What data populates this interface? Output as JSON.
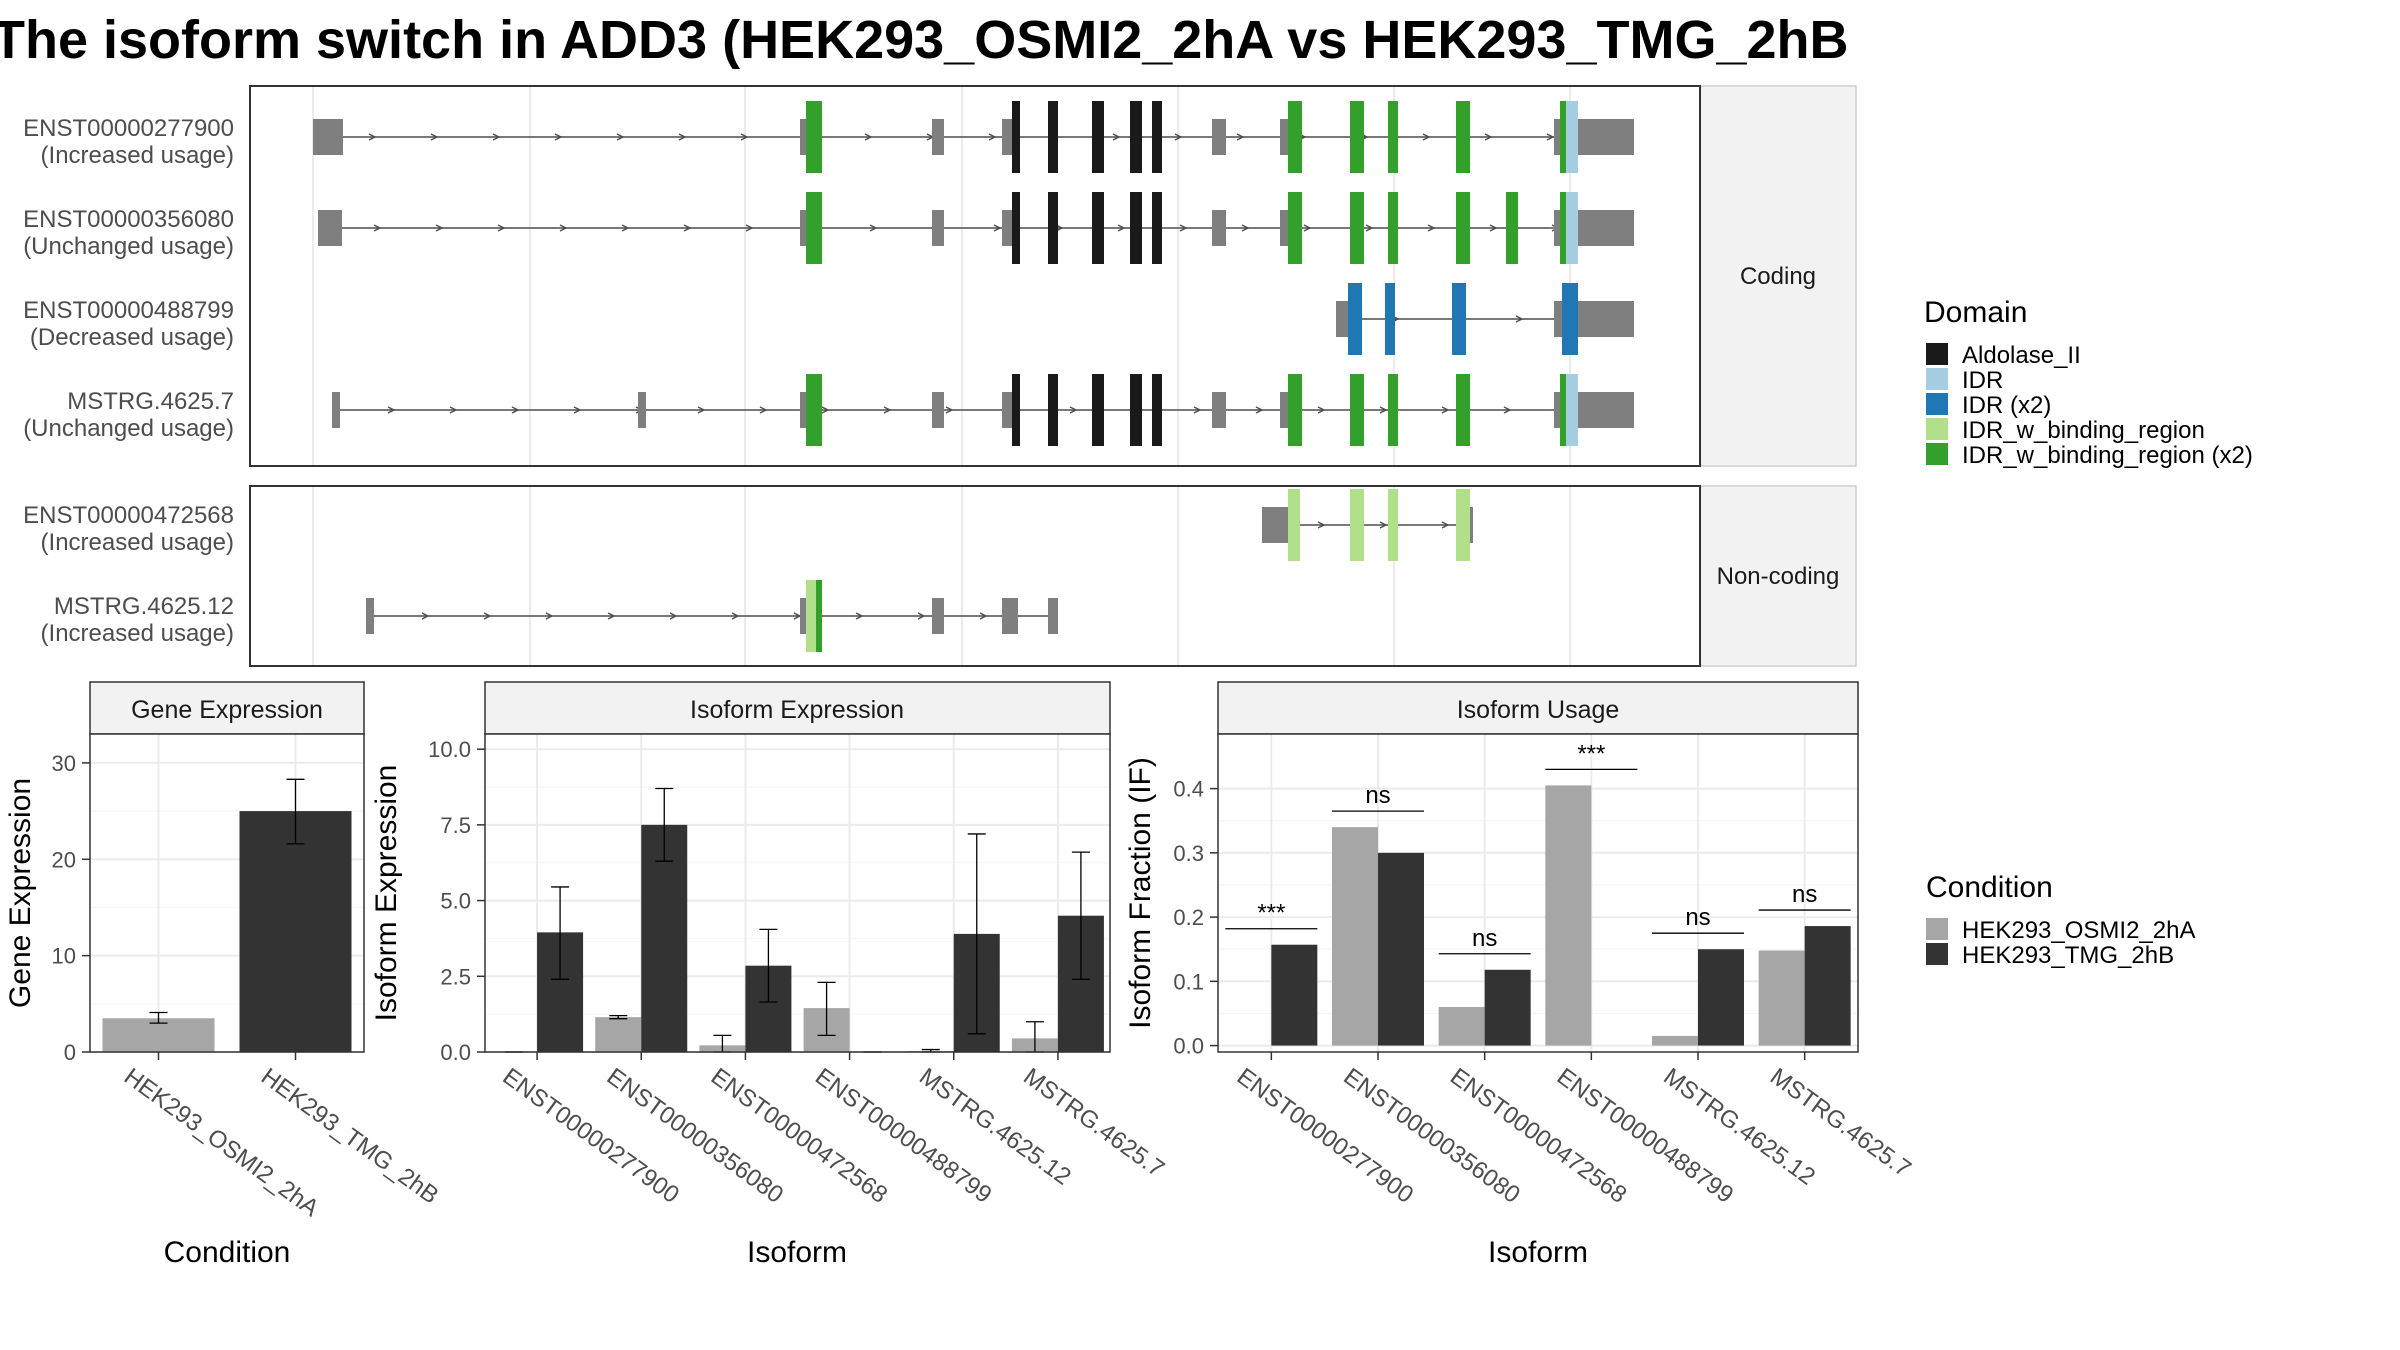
{
  "title": "The isoform switch in ADD3 (HEK293_OSMI2_2hA vs HEK293_TMG_2hB",
  "colors": {
    "intron": "#4d4d4d",
    "utr_exon": "#7f7f7f",
    "strip_bg": "#f2f2f2",
    "frame": "#333333",
    "grid": "#ebebeb",
    "cond_a": "#a6a6a6",
    "cond_b": "#333333",
    "Aldolase_II": "#1a1a1a",
    "IDR": "#a6cee3",
    "IDR (x2)": "#1f78b4",
    "IDR_w_binding_region": "#b2df8a",
    "IDR_w_binding_region (x2)": "#33a02c"
  },
  "panels": {
    "coding_label": "Coding",
    "noncoding_label": "Non-coding"
  },
  "legend_domain": {
    "title": "Domain",
    "items": [
      "Aldolase_II",
      "IDR",
      "IDR (x2)",
      "IDR_w_binding_region",
      "IDR_w_binding_region (x2)"
    ]
  },
  "legend_condition": {
    "title": "Condition",
    "items": [
      "HEK293_OSMI2_2hA",
      "HEK293_TMG_2hB"
    ]
  },
  "isoform_structures": {
    "coding": [
      {
        "id": "ENST00000277900",
        "usage": "(Increased usage)"
      },
      {
        "id": "ENST00000356080",
        "usage": "(Unchanged usage)"
      },
      {
        "id": "ENST00000488799",
        "usage": "(Decreased usage)"
      },
      {
        "id": "MSTRG.4625.7",
        "usage": "(Unchanged usage)"
      }
    ],
    "noncoding": [
      {
        "id": "ENST00000472568",
        "usage": "(Increased usage)"
      },
      {
        "id": "MSTRG.4625.12",
        "usage": "(Increased usage)"
      }
    ]
  },
  "chart_data": [
    {
      "type": "bar",
      "title": "Gene Expression",
      "xlabel": "Condition",
      "ylabel": "Gene Expression",
      "categories": [
        "HEK293_OSMI2_2hA",
        "HEK293_TMG_2hB"
      ],
      "values": [
        3.5,
        25.0
      ],
      "error": [
        [
          3.0,
          4.1
        ],
        [
          21.6,
          28.3
        ]
      ],
      "ylim": [
        0,
        33
      ],
      "yticks": [
        "0",
        "10",
        "20",
        "30"
      ],
      "ytick_values": [
        0,
        10,
        20,
        30
      ],
      "grid": true
    },
    {
      "type": "bar",
      "title": "Isoform Expression",
      "xlabel": "Isoform",
      "ylabel": "Isoform Expression",
      "categories": [
        "ENST00000277900",
        "ENST00000356080",
        "ENST00000472568",
        "ENST00000488799",
        "MSTRG.4625.12",
        "MSTRG.4625.7"
      ],
      "series": [
        {
          "name": "HEK293_OSMI2_2hA",
          "values": [
            0.0,
            1.15,
            0.22,
            1.45,
            0.03,
            0.45
          ],
          "error": [
            [
              0.0,
              0.0
            ],
            [
              1.1,
              1.2
            ],
            [
              0.0,
              0.55
            ],
            [
              0.55,
              2.3
            ],
            [
              0.0,
              0.08
            ],
            [
              0.0,
              1.0
            ]
          ]
        },
        {
          "name": "HEK293_TMG_2hB",
          "values": [
            3.95,
            7.5,
            2.85,
            0.0,
            3.9,
            4.5
          ],
          "error": [
            [
              2.4,
              5.45
            ],
            [
              6.3,
              8.7
            ],
            [
              1.65,
              4.05
            ],
            [
              0.0,
              0.0
            ],
            [
              0.6,
              7.2
            ],
            [
              2.4,
              6.6
            ]
          ]
        }
      ],
      "ylim": [
        0,
        10.5
      ],
      "yticks": [
        "0.0",
        "2.5",
        "5.0",
        "7.5",
        "10.0"
      ],
      "ytick_values": [
        0,
        2.5,
        5,
        7.5,
        10
      ],
      "grid": true
    },
    {
      "type": "bar",
      "title": "Isoform Usage",
      "xlabel": "Isoform",
      "ylabel": "Isoform Fraction (IF)",
      "categories": [
        "ENST00000277900",
        "ENST00000356080",
        "ENST00000472568",
        "ENST00000488799",
        "MSTRG.4625.12",
        "MSTRG.4625.7"
      ],
      "series": [
        {
          "name": "HEK293_OSMI2_2hA",
          "values": [
            0.0,
            0.34,
            0.06,
            0.405,
            0.015,
            0.148
          ]
        },
        {
          "name": "HEK293_TMG_2hB",
          "values": [
            0.157,
            0.3,
            0.118,
            0.0,
            0.15,
            0.186
          ]
        }
      ],
      "significance": [
        "***",
        "ns",
        "ns",
        "***",
        "ns",
        "ns"
      ],
      "ylim": [
        -0.01,
        0.485
      ],
      "yticks": [
        "0.0",
        "0.1",
        "0.2",
        "0.3",
        "0.4"
      ],
      "ytick_values": [
        0,
        0.1,
        0.2,
        0.3,
        0.4
      ],
      "grid": true
    }
  ]
}
